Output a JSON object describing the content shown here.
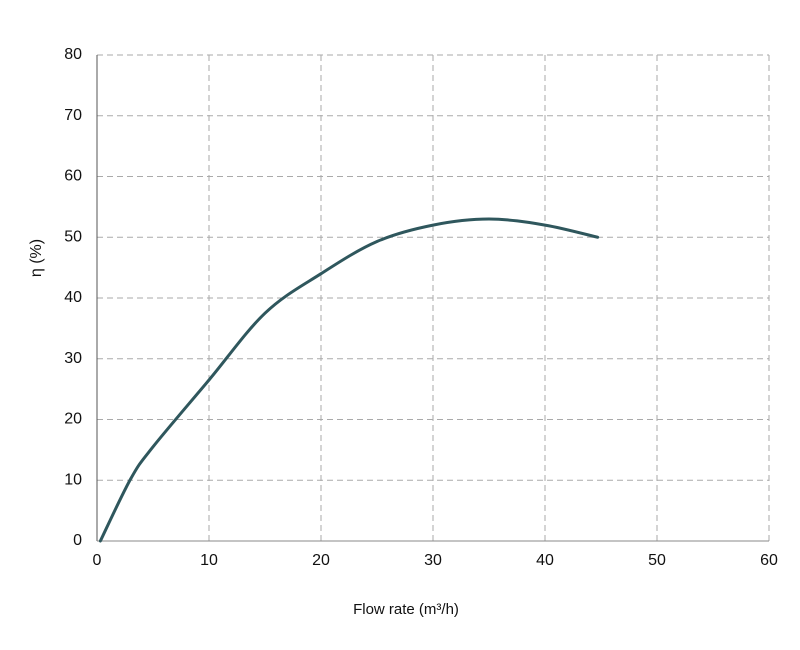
{
  "chart_data": {
    "type": "line",
    "x_label": "Flow rate (m³/h)",
    "y_label": "η (%)",
    "series": [
      {
        "name": "η",
        "color": "#2f575d",
        "x": [
          0.3,
          3,
          5,
          10,
          15,
          20,
          25,
          30,
          35,
          40,
          44.7
        ],
        "values": [
          0,
          10.2,
          15.5,
          26.5,
          37.5,
          44,
          49.3,
          52,
          53,
          52,
          50
        ]
      }
    ],
    "xlim": [
      0,
      60
    ],
    "xticks": [
      0,
      10,
      20,
      30,
      40,
      50,
      60
    ],
    "ylim": [
      0,
      80
    ],
    "yticks": [
      0,
      10,
      20,
      30,
      40,
      50,
      60,
      70,
      80
    ],
    "grid": true
  }
}
